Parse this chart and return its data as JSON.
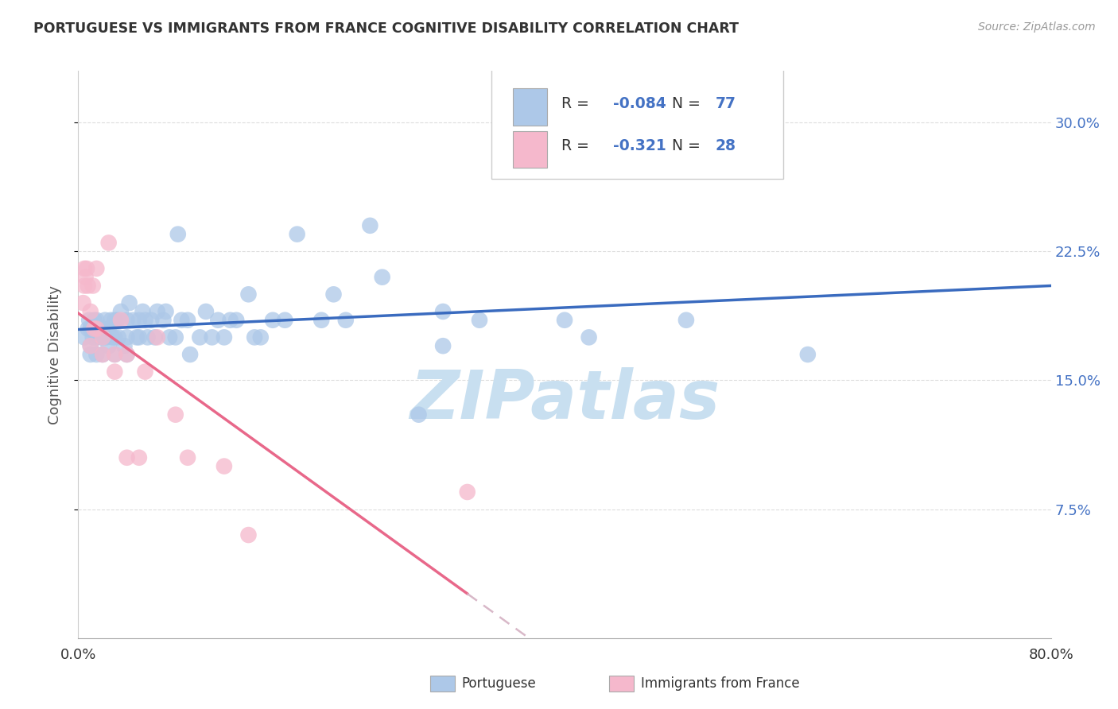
{
  "title": "PORTUGUESE VS IMMIGRANTS FROM FRANCE COGNITIVE DISABILITY CORRELATION CHART",
  "source": "Source: ZipAtlas.com",
  "ylabel": "Cognitive Disability",
  "xlim": [
    0.0,
    0.8
  ],
  "ylim": [
    0.0,
    0.33
  ],
  "ytick_vals": [
    0.075,
    0.15,
    0.225,
    0.3
  ],
  "ytick_labels": [
    "7.5%",
    "15.0%",
    "22.5%",
    "30.0%"
  ],
  "xtick_vals": [
    0.0,
    0.1,
    0.2,
    0.3,
    0.4,
    0.5,
    0.6,
    0.7,
    0.8
  ],
  "xtick_labels": [
    "0.0%",
    "",
    "",
    "",
    "",
    "",
    "",
    "",
    "80.0%"
  ],
  "portuguese_color": "#adc8e8",
  "france_color": "#f5b8cc",
  "trend_blue": "#3a6bbf",
  "trend_pink": "#e8688a",
  "trend_dashed_color": "#d8b8c8",
  "legend_text_color": "#4472c4",
  "R_portuguese": -0.084,
  "N_portuguese": 77,
  "R_france": -0.321,
  "N_france": 28,
  "portuguese_x": [
    0.005,
    0.008,
    0.009,
    0.01,
    0.01,
    0.01,
    0.012,
    0.013,
    0.015,
    0.015,
    0.015,
    0.018,
    0.02,
    0.02,
    0.02,
    0.022,
    0.023,
    0.025,
    0.025,
    0.027,
    0.028,
    0.03,
    0.03,
    0.03,
    0.032,
    0.033,
    0.035,
    0.038,
    0.04,
    0.04,
    0.04,
    0.042,
    0.045,
    0.048,
    0.05,
    0.05,
    0.053,
    0.055,
    0.057,
    0.06,
    0.063,
    0.065,
    0.07,
    0.072,
    0.075,
    0.08,
    0.082,
    0.085,
    0.09,
    0.092,
    0.1,
    0.105,
    0.11,
    0.115,
    0.12,
    0.125,
    0.13,
    0.14,
    0.145,
    0.15,
    0.16,
    0.17,
    0.18,
    0.2,
    0.21,
    0.22,
    0.24,
    0.25,
    0.28,
    0.3,
    0.33,
    0.36,
    0.4,
    0.42,
    0.5,
    0.6,
    0.3
  ],
  "portuguese_y": [
    0.175,
    0.18,
    0.185,
    0.17,
    0.18,
    0.165,
    0.175,
    0.185,
    0.175,
    0.185,
    0.165,
    0.175,
    0.175,
    0.18,
    0.165,
    0.185,
    0.175,
    0.18,
    0.17,
    0.185,
    0.175,
    0.175,
    0.185,
    0.165,
    0.185,
    0.175,
    0.19,
    0.17,
    0.175,
    0.185,
    0.165,
    0.195,
    0.185,
    0.175,
    0.185,
    0.175,
    0.19,
    0.185,
    0.175,
    0.185,
    0.175,
    0.19,
    0.185,
    0.19,
    0.175,
    0.175,
    0.235,
    0.185,
    0.185,
    0.165,
    0.175,
    0.19,
    0.175,
    0.185,
    0.175,
    0.185,
    0.185,
    0.2,
    0.175,
    0.175,
    0.185,
    0.185,
    0.235,
    0.185,
    0.2,
    0.185,
    0.24,
    0.21,
    0.13,
    0.19,
    0.185,
    0.275,
    0.185,
    0.175,
    0.185,
    0.165,
    0.17
  ],
  "france_x": [
    0.004,
    0.005,
    0.005,
    0.006,
    0.007,
    0.008,
    0.01,
    0.01,
    0.012,
    0.013,
    0.015,
    0.015,
    0.02,
    0.02,
    0.025,
    0.03,
    0.03,
    0.035,
    0.04,
    0.04,
    0.05,
    0.055,
    0.065,
    0.08,
    0.09,
    0.12,
    0.14,
    0.32
  ],
  "france_y": [
    0.195,
    0.215,
    0.205,
    0.21,
    0.215,
    0.205,
    0.19,
    0.17,
    0.205,
    0.18,
    0.215,
    0.18,
    0.165,
    0.175,
    0.23,
    0.165,
    0.155,
    0.185,
    0.105,
    0.165,
    0.105,
    0.155,
    0.175,
    0.13,
    0.105,
    0.1,
    0.06,
    0.085
  ],
  "background_color": "#ffffff",
  "grid_color": "#dddddd",
  "title_color": "#333333",
  "watermark_text": "ZIPatlas",
  "watermark_color": "#c8dff0"
}
